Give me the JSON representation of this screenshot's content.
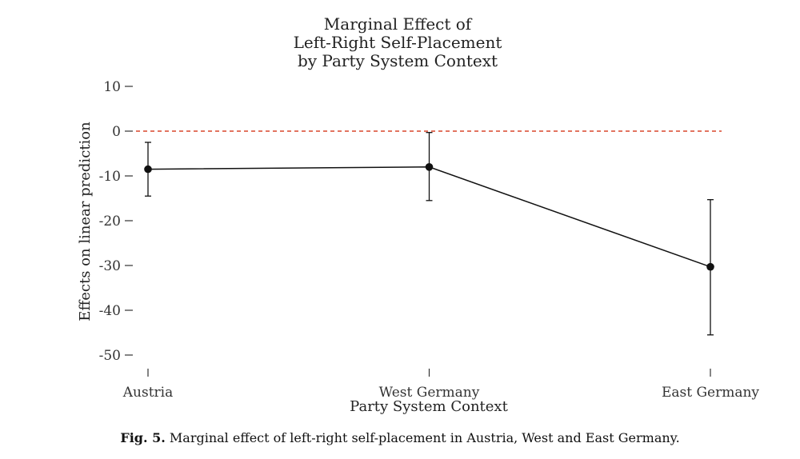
{
  "chart_data": {
    "type": "line",
    "title": [
      "Marginal Effect of",
      "Left-Right Self-Placement",
      "by Party System Context"
    ],
    "xlabel": "Party System Context",
    "ylabel": "Effects on linear prediction",
    "categories": [
      "Austria",
      "West Germany",
      "East Germany"
    ],
    "series": [
      {
        "values": [
          -8.5,
          -8.0,
          -30.3
        ],
        "lower": [
          -14.5,
          -15.5,
          -45.5
        ],
        "upper": [
          -2.5,
          -0.3,
          -15.3
        ]
      }
    ],
    "ylim": [
      -50,
      10
    ],
    "yticks": [
      10,
      0,
      -10,
      -20,
      -30,
      -40,
      -50
    ],
    "reference_line": {
      "y": 0,
      "color": "#d9472b",
      "style": "dashed"
    },
    "grid": false,
    "legend": "none"
  },
  "caption": {
    "label": "Fig. 5.",
    "text": "Marginal effect of left-right self-placement in Austria, West and East Germany."
  },
  "colors": {
    "line": "#111111",
    "reference": "#d9472b"
  }
}
